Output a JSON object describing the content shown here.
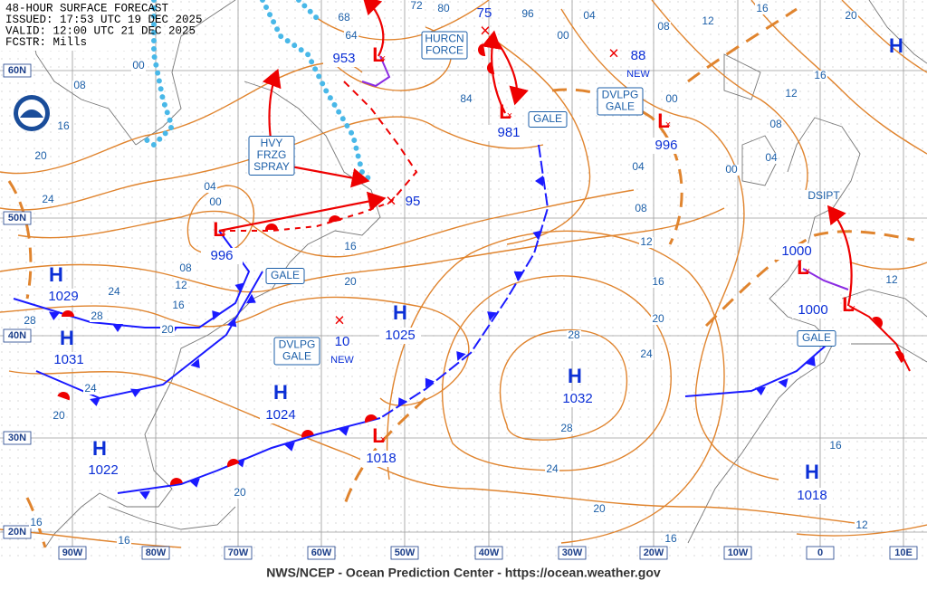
{
  "header": {
    "lines": [
      "48-HOUR SURFACE FORECAST",
      "ISSUED: 17:53 UTC 19 DEC 2025",
      "VALID:  12:00 UTC 21 DEC 2025",
      "FCSTR:  Mills"
    ]
  },
  "footer": "NWS/NCEP - Ocean Prediction Center - https://ocean.weather.gov",
  "lon_labels": [
    "90W",
    "80W",
    "70W",
    "60W",
    "50W",
    "40W",
    "30W",
    "20W",
    "10W",
    "0",
    "10E"
  ],
  "lat_labels": [
    "60N",
    "50N",
    "40N",
    "30N",
    "20N"
  ],
  "highs": [
    {
      "symbol": "H",
      "pressure": "1029"
    },
    {
      "symbol": "H",
      "pressure": "1031"
    },
    {
      "symbol": "H",
      "pressure": "1022"
    },
    {
      "symbol": "H",
      "pressure": "1024"
    },
    {
      "symbol": "H",
      "pressure": "1025"
    },
    {
      "symbol": "H",
      "pressure": "1032"
    },
    {
      "symbol": "H",
      "pressure": "1018"
    },
    {
      "symbol": "H"
    }
  ],
  "lows": [
    {
      "symbol": "L",
      "pressure": "953"
    },
    {
      "symbol": "L",
      "pressure": "981"
    },
    {
      "symbol": "L",
      "pressure": "996"
    },
    {
      "symbol": "L",
      "pressure": "996"
    },
    {
      "symbol": "L",
      "pressure": "1018"
    },
    {
      "symbol": "L",
      "pressure": "1000"
    },
    {
      "symbol": "L",
      "pressure": "1000"
    }
  ],
  "new_lows": [
    {
      "pressure": "95"
    },
    {
      "pressure": "10",
      "note": "NEW"
    },
    {
      "pressure": "88",
      "note": "NEW"
    },
    {
      "pressure": "75"
    }
  ],
  "isobar_labels": [
    "00",
    "08",
    "16",
    "20",
    "24",
    "04",
    "00",
    "08",
    "12",
    "16",
    "20",
    "24",
    "28",
    "28",
    "24",
    "20",
    "20",
    "16",
    "20",
    "72",
    "80",
    "96",
    "68",
    "64",
    "84",
    "04",
    "00",
    "08",
    "12",
    "16",
    "20",
    "16",
    "12",
    "08",
    "04",
    "00",
    "00",
    "04",
    "08",
    "12",
    "16",
    "20",
    "24",
    "28",
    "28",
    "24",
    "20",
    "16",
    "12",
    "16",
    "16",
    "16",
    "12"
  ],
  "boxes": [
    {
      "lines": [
        "GALE"
      ]
    },
    {
      "lines": [
        "GALE"
      ]
    },
    {
      "lines": [
        "GALE"
      ]
    },
    {
      "lines": [
        "DVLPG",
        "GALE"
      ]
    },
    {
      "lines": [
        "DVLPG",
        "GALE"
      ]
    },
    {
      "lines": [
        "HURCN",
        "FORCE"
      ]
    },
    {
      "lines": [
        "HVY",
        "FRZG",
        "SPRAY"
      ]
    }
  ],
  "annotations": [
    "DSIPT"
  ]
}
